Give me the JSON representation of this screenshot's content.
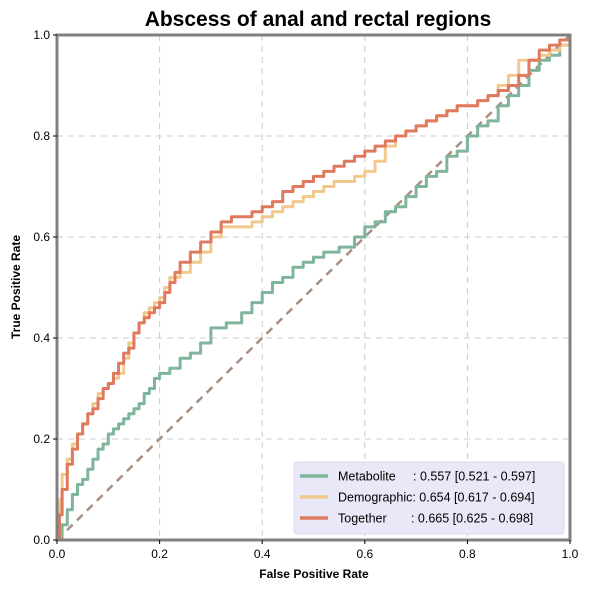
{
  "chart_data": {
    "type": "line",
    "title": "Abscess of anal and rectal regions",
    "xlabel": "False Positive Rate",
    "ylabel": "True Positive Rate",
    "xlim": [
      0,
      1
    ],
    "ylim": [
      0,
      1
    ],
    "xticks": [
      "0.0",
      "0.2",
      "0.4",
      "0.6",
      "0.8",
      "1.0"
    ],
    "yticks": [
      "0.0",
      "0.2",
      "0.4",
      "0.6",
      "0.8",
      "1.0"
    ],
    "grid": true,
    "legend_position": "bottom-right",
    "colors": {
      "metabolite": "#7fb59b",
      "demographic": "#f1c98d",
      "together": "#e07a5f",
      "chance": "#a88f80",
      "legend_bg": "#e8e8f8",
      "frame": "#808080",
      "grid": "#cccccc"
    },
    "series": [
      {
        "name": "Metabolite",
        "legend_label": "Metabolite     : 0.557 [0.521 - 0.597]",
        "x": [
          0,
          0.01,
          0.02,
          0.03,
          0.04,
          0.05,
          0.06,
          0.07,
          0.08,
          0.09,
          0.1,
          0.11,
          0.12,
          0.13,
          0.14,
          0.15,
          0.16,
          0.17,
          0.18,
          0.19,
          0.2,
          0.22,
          0.24,
          0.26,
          0.28,
          0.3,
          0.33,
          0.36,
          0.38,
          0.4,
          0.42,
          0.44,
          0.46,
          0.48,
          0.5,
          0.52,
          0.55,
          0.58,
          0.6,
          0.62,
          0.64,
          0.66,
          0.68,
          0.7,
          0.72,
          0.74,
          0.76,
          0.78,
          0.8,
          0.82,
          0.84,
          0.86,
          0.88,
          0.9,
          0.92,
          0.94,
          0.96,
          0.98,
          1.0
        ],
        "y": [
          0,
          0.03,
          0.06,
          0.09,
          0.11,
          0.12,
          0.14,
          0.16,
          0.18,
          0.19,
          0.21,
          0.22,
          0.23,
          0.24,
          0.25,
          0.26,
          0.27,
          0.29,
          0.3,
          0.32,
          0.33,
          0.34,
          0.36,
          0.37,
          0.39,
          0.42,
          0.43,
          0.45,
          0.47,
          0.49,
          0.51,
          0.52,
          0.54,
          0.55,
          0.56,
          0.57,
          0.58,
          0.6,
          0.62,
          0.63,
          0.65,
          0.66,
          0.68,
          0.7,
          0.72,
          0.73,
          0.76,
          0.77,
          0.8,
          0.82,
          0.83,
          0.86,
          0.88,
          0.9,
          0.93,
          0.95,
          0.96,
          0.98,
          1.0
        ]
      },
      {
        "name": "Demographic",
        "legend_label": "Demographic: 0.654 [0.617 - 0.694]",
        "x": [
          0,
          0.005,
          0.01,
          0.02,
          0.03,
          0.04,
          0.05,
          0.06,
          0.07,
          0.08,
          0.09,
          0.1,
          0.11,
          0.12,
          0.13,
          0.14,
          0.15,
          0.16,
          0.17,
          0.18,
          0.19,
          0.2,
          0.21,
          0.22,
          0.23,
          0.24,
          0.26,
          0.28,
          0.3,
          0.32,
          0.34,
          0.36,
          0.38,
          0.4,
          0.42,
          0.44,
          0.46,
          0.48,
          0.5,
          0.52,
          0.54,
          0.56,
          0.58,
          0.6,
          0.62,
          0.64,
          0.66,
          0.68,
          0.7,
          0.72,
          0.74,
          0.76,
          0.78,
          0.8,
          0.82,
          0.84,
          0.86,
          0.88,
          0.9,
          0.92,
          0.94,
          0.96,
          0.98,
          1.0
        ],
        "y": [
          0,
          0.08,
          0.13,
          0.16,
          0.19,
          0.21,
          0.23,
          0.25,
          0.27,
          0.29,
          0.3,
          0.31,
          0.32,
          0.33,
          0.36,
          0.39,
          0.41,
          0.43,
          0.45,
          0.46,
          0.47,
          0.48,
          0.5,
          0.52,
          0.52,
          0.53,
          0.55,
          0.57,
          0.6,
          0.62,
          0.62,
          0.62,
          0.63,
          0.64,
          0.65,
          0.66,
          0.67,
          0.68,
          0.69,
          0.7,
          0.71,
          0.71,
          0.72,
          0.73,
          0.75,
          0.78,
          0.8,
          0.81,
          0.82,
          0.83,
          0.84,
          0.85,
          0.86,
          0.86,
          0.87,
          0.88,
          0.9,
          0.92,
          0.95,
          0.95,
          0.96,
          0.97,
          0.98,
          1.0
        ]
      },
      {
        "name": "Together",
        "legend_label": "Together       : 0.665 [0.625 - 0.698]",
        "x": [
          0,
          0.005,
          0.01,
          0.02,
          0.03,
          0.04,
          0.05,
          0.06,
          0.07,
          0.08,
          0.09,
          0.1,
          0.11,
          0.12,
          0.13,
          0.14,
          0.15,
          0.16,
          0.17,
          0.18,
          0.19,
          0.2,
          0.21,
          0.22,
          0.23,
          0.24,
          0.26,
          0.28,
          0.3,
          0.32,
          0.34,
          0.36,
          0.38,
          0.4,
          0.42,
          0.44,
          0.46,
          0.48,
          0.5,
          0.52,
          0.54,
          0.56,
          0.58,
          0.6,
          0.62,
          0.64,
          0.66,
          0.68,
          0.7,
          0.72,
          0.74,
          0.76,
          0.78,
          0.8,
          0.82,
          0.84,
          0.86,
          0.88,
          0.9,
          0.92,
          0.94,
          0.96,
          0.98,
          1.0
        ],
        "y": [
          0,
          0.05,
          0.1,
          0.15,
          0.18,
          0.21,
          0.23,
          0.25,
          0.26,
          0.28,
          0.3,
          0.31,
          0.33,
          0.35,
          0.37,
          0.38,
          0.41,
          0.43,
          0.44,
          0.45,
          0.46,
          0.47,
          0.49,
          0.51,
          0.53,
          0.55,
          0.57,
          0.59,
          0.61,
          0.63,
          0.64,
          0.64,
          0.65,
          0.66,
          0.67,
          0.69,
          0.7,
          0.71,
          0.72,
          0.73,
          0.74,
          0.75,
          0.76,
          0.77,
          0.78,
          0.79,
          0.8,
          0.81,
          0.82,
          0.83,
          0.84,
          0.85,
          0.86,
          0.86,
          0.87,
          0.88,
          0.89,
          0.9,
          0.92,
          0.95,
          0.97,
          0.98,
          0.99,
          1.0
        ]
      }
    ]
  }
}
